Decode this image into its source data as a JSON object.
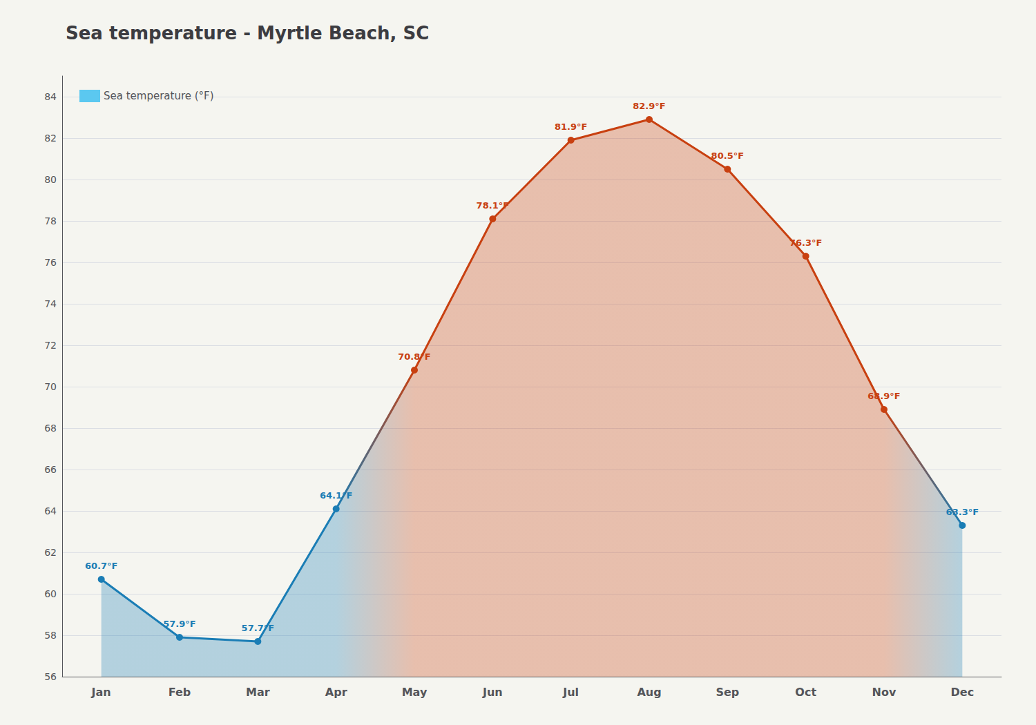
{
  "chart_data": {
    "type": "area",
    "title": "Sea temperature - Myrtle Beach, SC",
    "categories": [
      "Jan",
      "Feb",
      "Mar",
      "Apr",
      "May",
      "Jun",
      "Jul",
      "Aug",
      "Sep",
      "Oct",
      "Nov",
      "Dec"
    ],
    "series": [
      {
        "name": "Sea temperature (°F)",
        "color": "#5BC8F0",
        "colors": [
          "#1A7DB5",
          "#1A7DB5",
          "#1A7DB5",
          "#1A7DB5",
          "#C84010",
          "#C84010",
          "#C84010",
          "#C84010",
          "#C84010",
          "#C84010",
          "#C84010",
          "#1A7DB5"
        ],
        "values": [
          60.7,
          57.9,
          57.7,
          64.1,
          70.8,
          78.1,
          81.9,
          82.9,
          80.5,
          76.3,
          68.9,
          63.3
        ],
        "value_labels": [
          "60.7°F",
          "57.9°F",
          "57.7°F",
          "64.1°F",
          "70.8°F",
          "78.1°F",
          "81.9°F",
          "82.9°F",
          "80.5°F",
          "76.3°F",
          "68.9°F",
          "63.3°F"
        ]
      }
    ],
    "ylim": [
      56,
      85
    ],
    "yticks": [
      56,
      58,
      60,
      62,
      64,
      66,
      68,
      70,
      72,
      74,
      76,
      78,
      80,
      82,
      84
    ],
    "grid": true,
    "legend": "upper left",
    "data_labels": true
  }
}
